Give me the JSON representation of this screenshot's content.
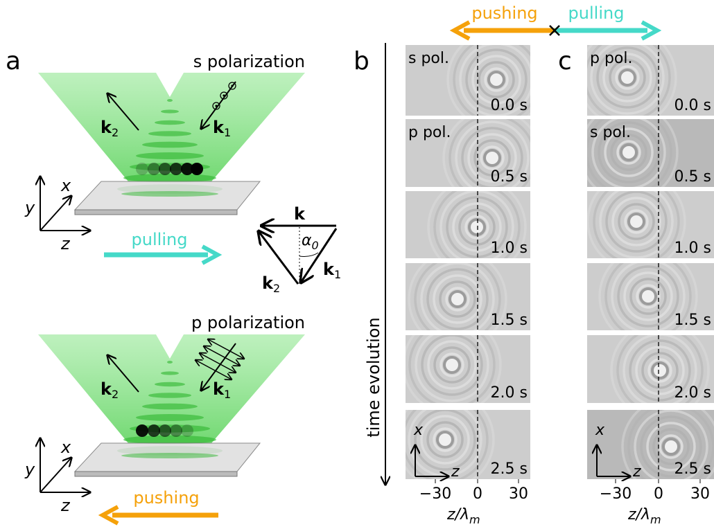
{
  "header": {
    "pushing": "pushing",
    "pulling": "pulling"
  },
  "panels": {
    "a": {
      "label": "a",
      "s_title": "s polarization",
      "p_title": "p polarization",
      "k1": {
        "base": "k",
        "sub": "1"
      },
      "k2": {
        "base": "k",
        "sub": "2"
      },
      "axes": {
        "x": "x",
        "y": "y",
        "z": "z"
      },
      "pulling": "pulling",
      "pushing": "pushing",
      "triangle": {
        "k": "k",
        "angle": {
          "base": "α",
          "sub": "0"
        }
      }
    },
    "b": {
      "label": "b",
      "frames": [
        {
          "pol": "s pol.",
          "time": "0.0 s"
        },
        {
          "pol": "p pol.",
          "time": "0.5 s"
        },
        {
          "time": "1.0 s"
        },
        {
          "time": "1.5 s"
        },
        {
          "time": "2.0 s"
        },
        {
          "time": "2.5 s"
        }
      ]
    },
    "c": {
      "label": "c",
      "frames": [
        {
          "pol": "p pol.",
          "time": "0.0 s"
        },
        {
          "pol": "s pol.",
          "time": "0.5 s"
        },
        {
          "time": "1.0 s"
        },
        {
          "time": "1.5 s"
        },
        {
          "time": "2.0 s"
        },
        {
          "time": "2.5 s"
        }
      ]
    }
  },
  "time_axis": "time evolution",
  "frame_axes": {
    "x": "x",
    "z": "z"
  },
  "xaxis": {
    "ticks": [
      "−30",
      "0",
      "30"
    ],
    "label": {
      "base": "z/λ",
      "sub": "m"
    }
  }
}
